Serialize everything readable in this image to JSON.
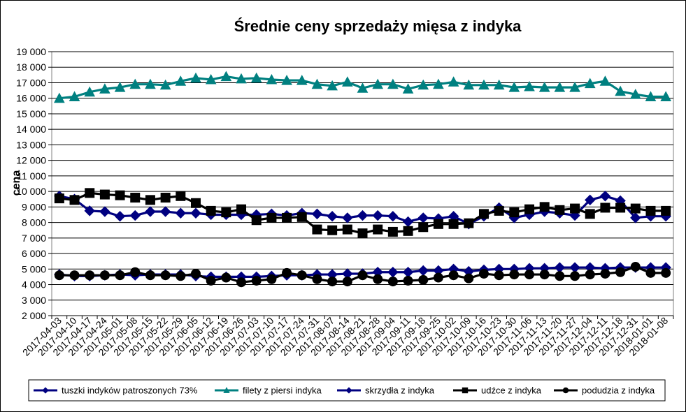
{
  "chart_data": {
    "type": "line",
    "title": "Średnie ceny sprzedaży mięsa z indyka",
    "ylabel": "cena",
    "xlabel": "",
    "ylim": [
      2000,
      19000
    ],
    "yticks": [
      2000,
      3000,
      4000,
      5000,
      6000,
      7000,
      8000,
      9000,
      10000,
      11000,
      12000,
      13000,
      14000,
      15000,
      16000,
      17000,
      18000,
      19000
    ],
    "ytick_labels": [
      "2 000",
      "3 000",
      "4 000",
      "5 000",
      "6 000",
      "7 000",
      "8 000",
      "9 000",
      "10 000",
      "11 000",
      "12 000",
      "13 000",
      "14 000",
      "15 000",
      "16 000",
      "17 000",
      "18 000",
      "19 000"
    ],
    "categories": [
      "2017-04-03",
      "2017-04-10",
      "2017-04-17",
      "2017-04-24",
      "2017-05-01",
      "2017-05-08",
      "2017-05-15",
      "2017-05-22",
      "2017-05-29",
      "2017-06-05",
      "2017-06-12",
      "2017-06-19",
      "2017-06-26",
      "2017-07-03",
      "2017-07-10",
      "2017-07-17",
      "2017-07-24",
      "2017-07-31",
      "2017-08-07",
      "2017-08-14",
      "2017-08-21",
      "2017-08-28",
      "2017-09-04",
      "2017-09-11",
      "2017-09-18",
      "2017-09-25",
      "2017-10-02",
      "2017-10-09",
      "2017-10-16",
      "2017-10-23",
      "2017-10-30",
      "2017-11-06",
      "2017-11-13",
      "2017-11-20",
      "2017-11-27",
      "2017-12-04",
      "2017-12-11",
      "2017-12-18",
      "2017-12-31",
      "2018-01-01",
      "2018-01-08"
    ],
    "grid": true,
    "legend_position": "bottom",
    "series": [
      {
        "name": "tuszki indyków patroszonych 73%",
        "color": "#000080",
        "marker": "diamond",
        "values": [
          4650,
          4550,
          4550,
          4600,
          4650,
          4600,
          4650,
          4650,
          4650,
          4550,
          4500,
          4500,
          4500,
          4500,
          4550,
          4600,
          4600,
          4650,
          4650,
          4700,
          4700,
          4800,
          4800,
          4800,
          4900,
          4900,
          5000,
          4850,
          4950,
          5000,
          5000,
          5050,
          5050,
          5100,
          5100,
          5100,
          5050,
          5100,
          5100,
          5100,
          5100
        ]
      },
      {
        "name": "filety z piersi indyka",
        "color": "#008080",
        "marker": "triangle",
        "values": [
          16000,
          16100,
          16400,
          16600,
          16700,
          16900,
          16900,
          16850,
          17100,
          17300,
          17200,
          17400,
          17250,
          17300,
          17200,
          17150,
          17150,
          16900,
          16800,
          17050,
          16650,
          16900,
          16900,
          16600,
          16850,
          16900,
          17050,
          16850,
          16850,
          16850,
          16700,
          16750,
          16700,
          16700,
          16700,
          16950,
          17100,
          16450,
          16250,
          16100,
          16100
        ]
      },
      {
        "name": "skrzydła z indyka",
        "color": "#000080",
        "marker": "diamond",
        "values": [
          9700,
          9500,
          8750,
          8700,
          8400,
          8450,
          8700,
          8700,
          8600,
          8600,
          8500,
          8500,
          8500,
          8500,
          8550,
          8450,
          8600,
          8550,
          8400,
          8300,
          8450,
          8450,
          8400,
          8050,
          8300,
          8250,
          8400,
          7900,
          8400,
          8950,
          8300,
          8500,
          8700,
          8600,
          8450,
          9450,
          9700,
          9400,
          8300,
          8400,
          8400
        ]
      },
      {
        "name": "udźce z indyka",
        "color": "#000000",
        "marker": "square",
        "values": [
          9550,
          9450,
          9900,
          9800,
          9750,
          9600,
          9450,
          9600,
          9700,
          9250,
          8750,
          8650,
          8850,
          8150,
          8300,
          8300,
          8350,
          7550,
          7500,
          7550,
          7300,
          7550,
          7400,
          7450,
          7700,
          7900,
          7900,
          7950,
          8550,
          8750,
          8650,
          8850,
          9000,
          8800,
          8900,
          8550,
          8950,
          8950,
          8900,
          8750,
          8750
        ]
      },
      {
        "name": "podudzia z indyka",
        "color": "#000000",
        "marker": "circle",
        "values": [
          4600,
          4600,
          4600,
          4600,
          4600,
          4800,
          4600,
          4600,
          4550,
          4700,
          4250,
          4450,
          4150,
          4250,
          4350,
          4750,
          4600,
          4350,
          4200,
          4200,
          4600,
          4350,
          4200,
          4250,
          4300,
          4450,
          4600,
          4400,
          4700,
          4600,
          4650,
          4650,
          4650,
          4550,
          4550,
          4650,
          4700,
          4800,
          5150,
          4750,
          4750
        ]
      }
    ]
  }
}
